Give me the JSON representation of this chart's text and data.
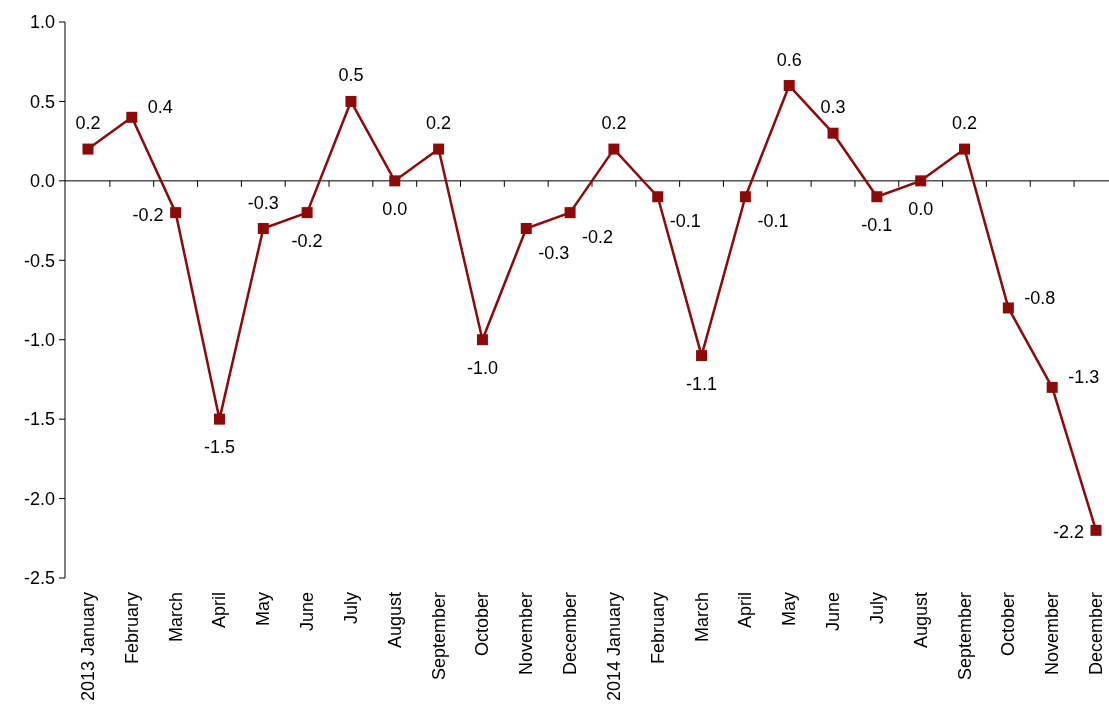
{
  "chart_data": {
    "type": "line",
    "categories": [
      "2013 January",
      "February",
      "March",
      "April",
      "May",
      "June",
      "July",
      "August",
      "September",
      "October",
      "November",
      "December",
      "2014 January",
      "February",
      "March",
      "April",
      "May",
      "June",
      "July",
      "August",
      "September",
      "October",
      "November",
      "December"
    ],
    "series": [
      {
        "color": "#8b0a0a",
        "values": [
          0.2,
          0.4,
          -0.2,
          -1.5,
          -0.3,
          -0.2,
          0.5,
          0.0,
          0.2,
          -1.0,
          -0.3,
          -0.2,
          0.2,
          -0.1,
          -1.1,
          -0.1,
          0.6,
          0.3,
          -0.1,
          0.0,
          0.2,
          -0.8,
          -1.3,
          -2.2
        ],
        "value_labels": [
          "0.2",
          "0.4",
          "-0.2",
          "-1.5",
          "-0.3",
          "-0.2",
          "0.5",
          "0.0",
          "0.2",
          "-1.0",
          "-0.3",
          "-0.2",
          "0.2",
          "-0.1",
          "-1.1",
          "-0.1",
          "0.6",
          "0.3",
          "-0.1",
          "0.0",
          "0.2",
          "-0.8",
          "-1.3",
          "-2.2"
        ]
      }
    ],
    "ylim": [
      -2.5,
      1.0
    ],
    "yticks": [
      {
        "value": 1,
        "label": "1.0"
      },
      {
        "value": 0.5,
        "label": "0.5"
      },
      {
        "value": 0,
        "label": "0.0"
      },
      {
        "value": -0.5,
        "label": "-0.5"
      },
      {
        "value": -1,
        "label": "-1.0"
      },
      {
        "value": -1.5,
        "label": "-1.5"
      },
      {
        "value": -2,
        "label": "-2.0"
      },
      {
        "value": -2.5,
        "label": "-2.5"
      }
    ],
    "marker": "square"
  }
}
